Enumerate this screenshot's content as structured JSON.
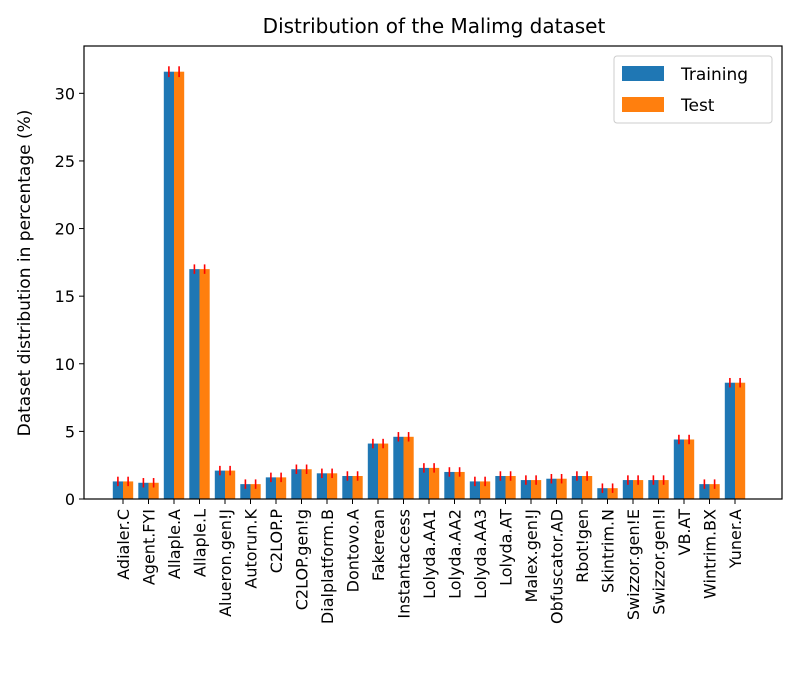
{
  "chart_data": {
    "type": "bar",
    "title": "Distribution of the Malimg dataset",
    "xlabel": "",
    "ylabel": "Dataset distribution in percentage (%)",
    "ylim": [
      0,
      33.5
    ],
    "yticks": [
      0,
      5,
      10,
      15,
      20,
      25,
      30
    ],
    "legend_position": "top-right",
    "categories": [
      "Adialer.C",
      "Agent.FYI",
      "Allaple.A",
      "Allaple.L",
      "Alueron.gen!J",
      "Autorun.K",
      "C2LOP.P",
      "C2LOP.gen!g",
      "Dialplatform.B",
      "Dontovo.A",
      "Fakerean",
      "Instantaccess",
      "Lolyda.AA1",
      "Lolyda.AA2",
      "Lolyda.AA3",
      "Lolyda.AT",
      "Malex.gen!J",
      "Obfuscator.AD",
      "Rbot!gen",
      "Skintrim.N",
      "Swizzor.gen!E",
      "Swizzor.gen!I",
      "VB.AT",
      "Wintrim.BX",
      "Yuner.A"
    ],
    "series": [
      {
        "name": "Training",
        "color": "#1f77b4",
        "values": [
          1.3,
          1.2,
          31.6,
          17.0,
          2.1,
          1.1,
          1.6,
          2.2,
          1.9,
          1.7,
          4.1,
          4.6,
          2.3,
          2.0,
          1.3,
          1.7,
          1.4,
          1.5,
          1.7,
          0.8,
          1.4,
          1.4,
          4.4,
          1.1,
          8.6
        ],
        "errors": [
          0.35,
          0.35,
          0.4,
          0.35,
          0.35,
          0.35,
          0.35,
          0.35,
          0.35,
          0.35,
          0.35,
          0.35,
          0.35,
          0.35,
          0.35,
          0.35,
          0.35,
          0.35,
          0.35,
          0.35,
          0.35,
          0.35,
          0.35,
          0.35,
          0.35
        ]
      },
      {
        "name": "Test",
        "color": "#ff7f0e",
        "values": [
          1.3,
          1.2,
          31.6,
          17.0,
          2.1,
          1.1,
          1.6,
          2.2,
          1.9,
          1.7,
          4.1,
          4.6,
          2.3,
          2.0,
          1.3,
          1.7,
          1.4,
          1.5,
          1.7,
          0.8,
          1.4,
          1.4,
          4.4,
          1.1,
          8.6
        ],
        "errors": [
          0.35,
          0.35,
          0.4,
          0.35,
          0.35,
          0.35,
          0.35,
          0.35,
          0.35,
          0.35,
          0.35,
          0.35,
          0.35,
          0.35,
          0.35,
          0.35,
          0.35,
          0.35,
          0.35,
          0.35,
          0.35,
          0.35,
          0.35,
          0.35,
          0.35
        ]
      }
    ],
    "error_bar_color": "#ff0000"
  }
}
